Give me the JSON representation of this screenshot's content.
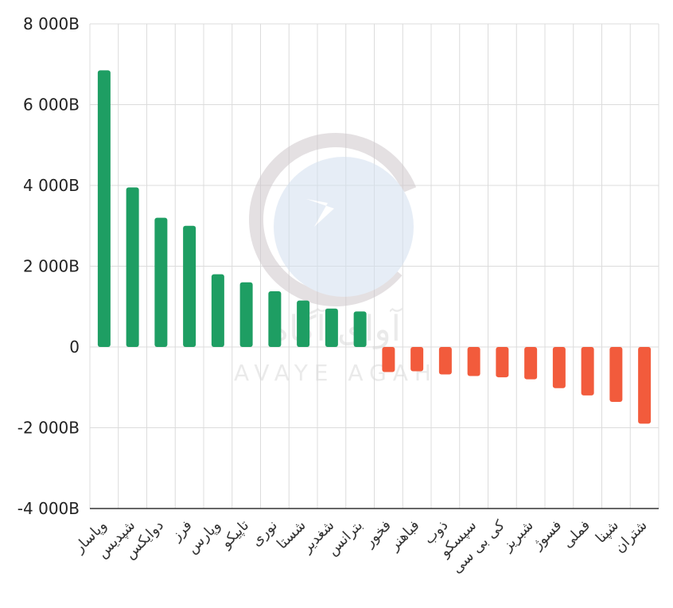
{
  "chart_data": {
    "type": "bar",
    "title": "",
    "xlabel": "",
    "ylabel": "",
    "ylim": [
      -4000,
      8000
    ],
    "y_ticks": [
      8000,
      6000,
      4000,
      2000,
      0,
      -2000,
      -4000
    ],
    "y_tick_labels": [
      "8 000B",
      "6 000B",
      "4 000B",
      "2 000B",
      "0",
      "-2 000B",
      "-4 000B"
    ],
    "grid": true,
    "legend": "none",
    "categories": [
      "وپاسار",
      "شپدیس",
      "دوایکس",
      "فرز",
      "وپارس",
      "تاپیکو",
      "نوری",
      "شستا",
      "شغدیر",
      "بترانس",
      "فخور",
      "فباهنر",
      "ذوب",
      "سپسکو",
      "کی بی سی",
      "شبریز",
      "فسوژ",
      "فملی",
      "شپنا",
      "شتران"
    ],
    "values": [
      6850,
      3950,
      3200,
      3000,
      1800,
      1600,
      1380,
      1150,
      950,
      880,
      -620,
      -600,
      -680,
      -720,
      -750,
      -800,
      -1020,
      -1200,
      -1360,
      -1900
    ],
    "colors": {
      "positive": "#1e9e63",
      "negative": "#f25b3c"
    }
  },
  "watermark": {
    "brand_fa": "آوای آگاه",
    "brand_en": "AVAYE AGAH"
  }
}
